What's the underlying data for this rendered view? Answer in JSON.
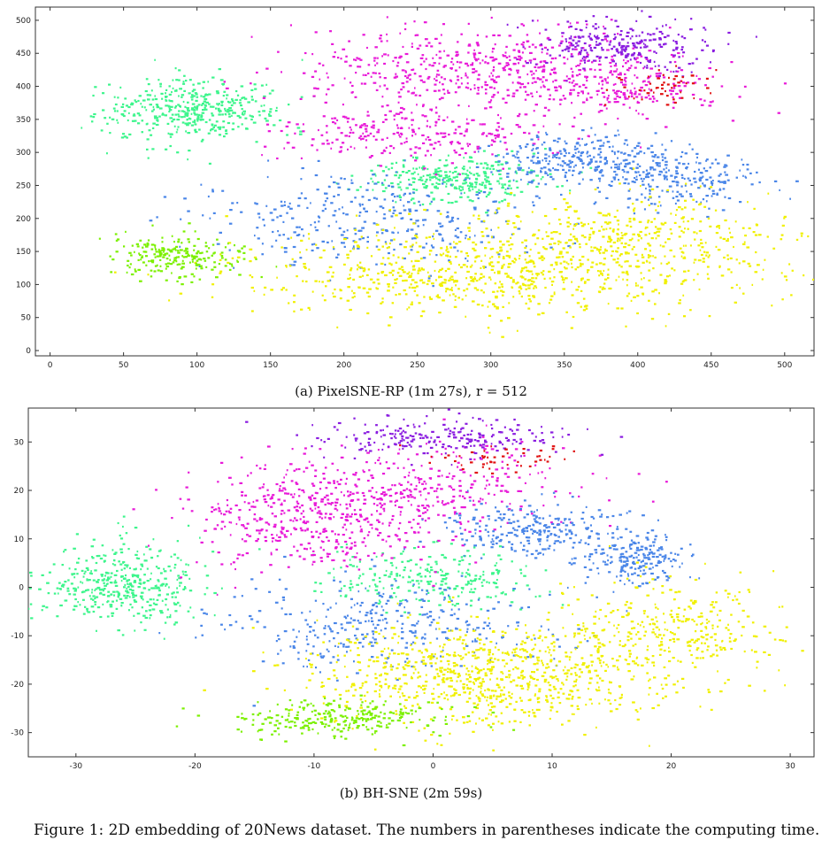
{
  "figure": {
    "caption": "Figure 1: 2D embedding of 20News dataset. The numbers in parentheses indicate the computing time."
  },
  "chart_data": [
    {
      "type": "scatter",
      "panel_caption": "(a) PixelSNE-RP (1m 27s), r = 512",
      "xlim": [
        -10,
        520
      ],
      "ylim": [
        -8,
        520
      ],
      "xticks": [
        0,
        50,
        100,
        150,
        200,
        250,
        300,
        350,
        400,
        450,
        500
      ],
      "yticks": [
        0,
        50,
        100,
        150,
        200,
        250,
        300,
        350,
        400,
        450,
        500
      ],
      "grid": false,
      "colors": {
        "green_teal": "#3df58c",
        "magenta": "#e81ad8",
        "blue": "#4a86e8",
        "yellow": "#f0f000",
        "lime": "#7cf000",
        "purple": "#8a1ce0",
        "red": "#e01010",
        "cyan": "#3ad8e8"
      },
      "clusters": [
        {
          "color": "green_teal",
          "center": [
            95,
            365
          ],
          "spread": [
            38,
            32
          ],
          "count": 420
        },
        {
          "color": "green_teal",
          "center": [
            275,
            260
          ],
          "spread": [
            40,
            22
          ],
          "count": 300
        },
        {
          "color": "magenta",
          "center": [
            290,
            430
          ],
          "spread": [
            80,
            45
          ],
          "count": 520
        },
        {
          "color": "magenta",
          "center": [
            250,
            330
          ],
          "spread": [
            60,
            30
          ],
          "count": 260
        },
        {
          "color": "magenta",
          "center": [
            390,
            400
          ],
          "spread": [
            45,
            35
          ],
          "count": 200
        },
        {
          "color": "blue",
          "center": [
            360,
            290
          ],
          "spread": [
            40,
            25
          ],
          "count": 300
        },
        {
          "color": "blue",
          "center": [
            430,
            260
          ],
          "spread": [
            35,
            30
          ],
          "count": 200
        },
        {
          "color": "blue",
          "center": [
            220,
            200
          ],
          "spread": [
            80,
            50
          ],
          "count": 350
        },
        {
          "color": "yellow",
          "center": [
            300,
            120
          ],
          "spread": [
            110,
            45
          ],
          "count": 800
        },
        {
          "color": "yellow",
          "center": [
            400,
            180
          ],
          "spread": [
            70,
            40
          ],
          "count": 300
        },
        {
          "color": "lime",
          "center": [
            85,
            145
          ],
          "spread": [
            30,
            22
          ],
          "count": 220
        },
        {
          "color": "purple",
          "center": [
            390,
            465
          ],
          "spread": [
            45,
            25
          ],
          "count": 260
        },
        {
          "color": "red",
          "center": [
            420,
            400
          ],
          "spread": [
            25,
            20
          ],
          "count": 50
        }
      ]
    },
    {
      "type": "scatter",
      "panel_caption": "(b) BH-SNE (2m 59s)",
      "xlim": [
        -34,
        32
      ],
      "ylim": [
        -35,
        37
      ],
      "xticks": [
        -30,
        -20,
        -10,
        0,
        10,
        20,
        30
      ],
      "yticks": [
        -30,
        -20,
        -10,
        0,
        10,
        20,
        30
      ],
      "grid": false,
      "clusters": [
        {
          "color": "green_teal",
          "center": [
            -26,
            1
          ],
          "spread": [
            4.5,
            6
          ],
          "count": 420
        },
        {
          "color": "green_teal",
          "center": [
            0,
            2
          ],
          "spread": [
            6,
            4
          ],
          "count": 250
        },
        {
          "color": "magenta",
          "center": [
            -9,
            15
          ],
          "spread": [
            8,
            7
          ],
          "count": 550
        },
        {
          "color": "magenta",
          "center": [
            2,
            22
          ],
          "spread": [
            9,
            6
          ],
          "count": 200
        },
        {
          "color": "blue",
          "center": [
            8,
            12
          ],
          "spread": [
            5,
            4
          ],
          "count": 250
        },
        {
          "color": "blue",
          "center": [
            17,
            6
          ],
          "spread": [
            3,
            4
          ],
          "count": 200
        },
        {
          "color": "blue",
          "center": [
            -4,
            -8
          ],
          "spread": [
            9,
            6
          ],
          "count": 350
        },
        {
          "color": "yellow",
          "center": [
            5,
            -18
          ],
          "spread": [
            10,
            7
          ],
          "count": 850
        },
        {
          "color": "yellow",
          "center": [
            20,
            -8
          ],
          "spread": [
            6,
            7
          ],
          "count": 300
        },
        {
          "color": "lime",
          "center": [
            -8,
            -27
          ],
          "spread": [
            6,
            2.5
          ],
          "count": 260
        },
        {
          "color": "purple",
          "center": [
            0,
            31
          ],
          "spread": [
            7,
            3
          ],
          "count": 220
        },
        {
          "color": "red",
          "center": [
            5,
            27
          ],
          "spread": [
            4,
            2
          ],
          "count": 50
        }
      ]
    }
  ]
}
